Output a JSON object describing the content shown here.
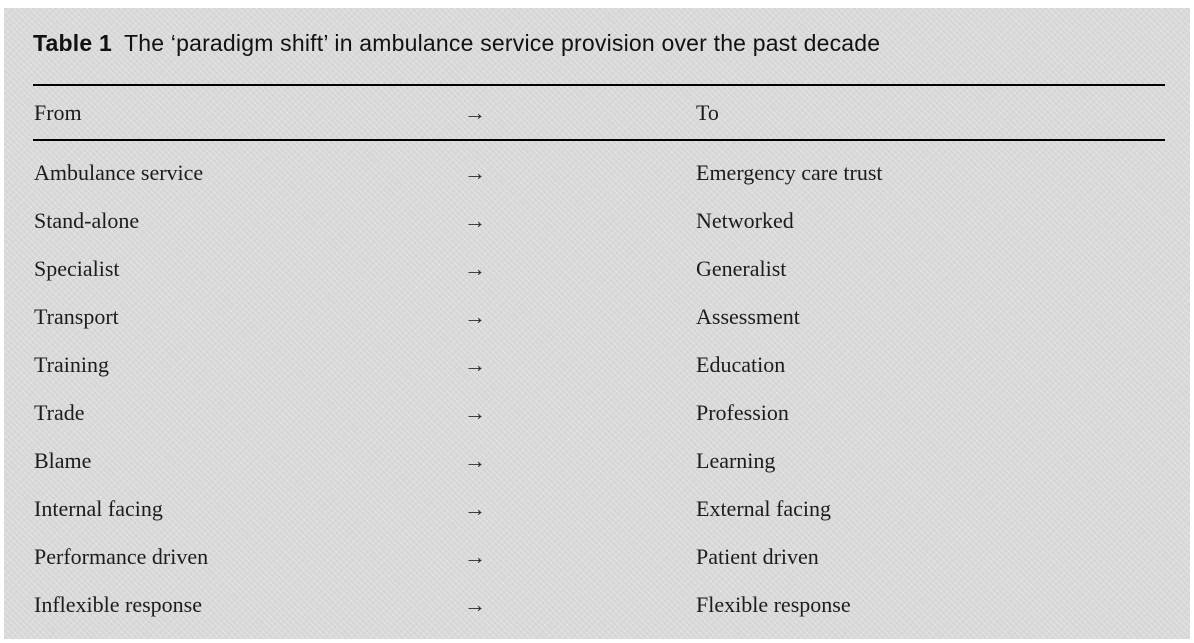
{
  "figure": {
    "label": "Table 1",
    "title": "The ‘paradigm shift’ in ambulance service provision over the past decade"
  },
  "table": {
    "arrow_glyph": "→",
    "columns": {
      "from": "From",
      "to": "To"
    },
    "rows": [
      {
        "from": "Ambulance service",
        "to": "Emergency care trust"
      },
      {
        "from": "Stand-alone",
        "to": "Networked"
      },
      {
        "from": "Specialist",
        "to": "Generalist"
      },
      {
        "from": "Transport",
        "to": "Assessment"
      },
      {
        "from": "Training",
        "to": "Education"
      },
      {
        "from": "Trade",
        "to": "Profession"
      },
      {
        "from": "Blame",
        "to": "Learning"
      },
      {
        "from": "Internal facing",
        "to": "External facing"
      },
      {
        "from": "Performance driven",
        "to": "Patient driven"
      },
      {
        "from": "Inflexible response",
        "to": "Flexible response"
      }
    ]
  },
  "colors": {
    "background": "#d6d6d6",
    "rule": "#000000",
    "caption_text": "#111111",
    "body_text": "#1c1c1c"
  }
}
